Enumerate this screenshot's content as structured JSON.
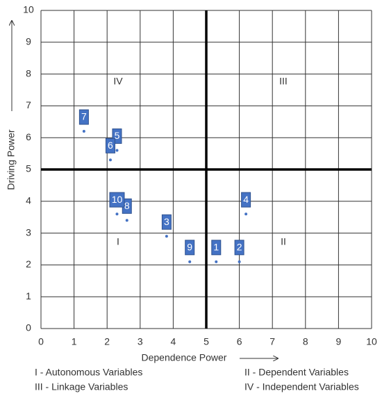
{
  "chart_data": {
    "type": "scatter",
    "x": [
      5.3,
      6.0,
      3.8,
      6.2,
      2.3,
      2.1,
      1.3,
      2.6,
      4.5,
      2.3
    ],
    "values": [
      2.1,
      2.1,
      2.9,
      3.6,
      5.6,
      5.3,
      6.2,
      3.4,
      2.1,
      3.6
    ],
    "point_labels": [
      "1",
      "2",
      "3",
      "4",
      "5",
      "6",
      "7",
      "8",
      "9",
      "10"
    ],
    "color": "#4472c4",
    "xlim": [
      0,
      10
    ],
    "ylim": [
      0,
      10
    ],
    "xticks": [
      0,
      1,
      2,
      3,
      4,
      5,
      6,
      7,
      8,
      9,
      10
    ],
    "yticks": [
      0,
      1,
      2,
      3,
      4,
      5,
      6,
      7,
      8,
      9,
      10
    ],
    "grid": true,
    "x_divider": 5,
    "y_divider": 5,
    "x_label": "Dependence Power",
    "y_label": "Driving Power",
    "quadrant_labels": [
      "IV",
      "III",
      "I",
      "II"
    ],
    "legend_notes": [
      "I - Autonomous Variables",
      "II - Dependent Variables",
      "III - Linkage Variables",
      "IV - Independent Variables"
    ]
  }
}
